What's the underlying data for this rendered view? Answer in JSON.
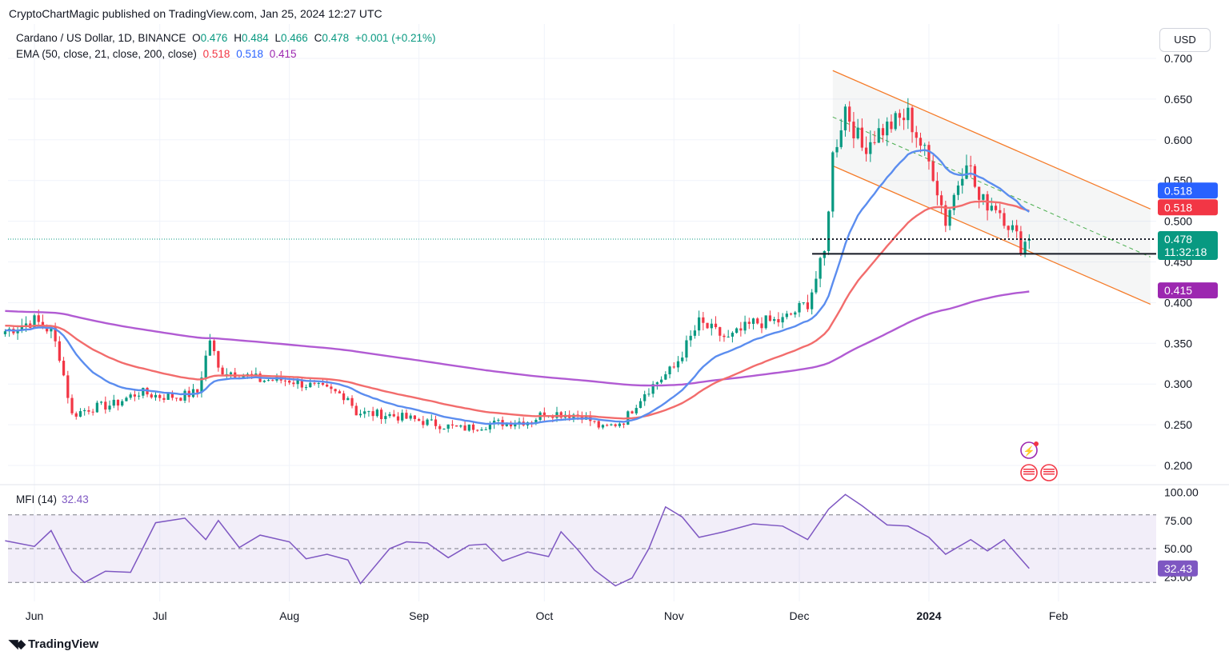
{
  "header": {
    "publisher": "CryptoChartMagic published on TradingView.com, Jan 25, 2024 12:27 UTC",
    "currency_button": "USD"
  },
  "legend": {
    "symbol": "Cardano / US Dollar, 1D, BINANCE",
    "o_label": "O",
    "o": "0.476",
    "h_label": "H",
    "h": "0.484",
    "l_label": "L",
    "l": "0.466",
    "c_label": "C",
    "c": "0.478",
    "change": "+0.001 (+0.21%)",
    "ema_label": "EMA (50, close, 21, close, 200, close)",
    "ema50": "0.518",
    "ema21": "0.518",
    "ema200": "0.415"
  },
  "mfi": {
    "label": "MFI (14)",
    "value": "32.43"
  },
  "footer": {
    "brand": "TradingView"
  },
  "colors": {
    "up": "#089981",
    "down": "#f23645",
    "ema21": "#5b8def",
    "ema50": "#f26c6c",
    "ema200": "#b15bd3",
    "mfi": "#7e57c2",
    "channel": "#f57c2a",
    "grid": "#f0f3fa"
  },
  "chart_data": [
    {
      "type": "candlestick",
      "title": "Cardano / US Dollar, 1D, BINANCE",
      "x_axis": {
        "ticks": [
          "Jun",
          "Jul",
          "Aug",
          "Sep",
          "Oct",
          "Nov",
          "Dec",
          "2024",
          "Feb"
        ]
      },
      "y_axis": {
        "ticks": [
          "0.700",
          "0.650",
          "0.600",
          "0.550",
          "0.500",
          "0.450",
          "0.400",
          "0.350",
          "0.300",
          "0.250",
          "0.200"
        ],
        "range": [
          0.18,
          0.72
        ]
      },
      "price_labels": [
        {
          "text": "0.518",
          "color": "#2962ff"
        },
        {
          "text": "0.518",
          "color": "#f23645"
        },
        {
          "text": "0.478",
          "color": "#089981"
        },
        {
          "text": "11:32:18",
          "color": "#089981"
        },
        {
          "text": "0.415",
          "color": "#9c27b0"
        }
      ],
      "close_path": [
        [
          "2023-05-25",
          0.365
        ],
        [
          "2023-06-01",
          0.378
        ],
        [
          "2023-06-05",
          0.365
        ],
        [
          "2023-06-07",
          0.335
        ],
        [
          "2023-06-10",
          0.262
        ],
        [
          "2023-06-14",
          0.27
        ],
        [
          "2023-06-20",
          0.275
        ],
        [
          "2023-06-26",
          0.29
        ],
        [
          "2023-07-01",
          0.285
        ],
        [
          "2023-07-06",
          0.285
        ],
        [
          "2023-07-10",
          0.29
        ],
        [
          "2023-07-13",
          0.355
        ],
        [
          "2023-07-15",
          0.318
        ],
        [
          "2023-07-20",
          0.313
        ],
        [
          "2023-07-25",
          0.305
        ],
        [
          "2023-08-01",
          0.305
        ],
        [
          "2023-08-08",
          0.295
        ],
        [
          "2023-08-15",
          0.285
        ],
        [
          "2023-08-17",
          0.265
        ],
        [
          "2023-08-25",
          0.262
        ],
        [
          "2023-09-01",
          0.255
        ],
        [
          "2023-09-06",
          0.25
        ],
        [
          "2023-09-11",
          0.245
        ],
        [
          "2023-09-20",
          0.252
        ],
        [
          "2023-09-28",
          0.255
        ],
        [
          "2023-10-01",
          0.265
        ],
        [
          "2023-10-10",
          0.262
        ],
        [
          "2023-10-15",
          0.245
        ],
        [
          "2023-10-20",
          0.255
        ],
        [
          "2023-10-25",
          0.29
        ],
        [
          "2023-11-01",
          0.32
        ],
        [
          "2023-11-07",
          0.375
        ],
        [
          "2023-11-14",
          0.355
        ],
        [
          "2023-11-20",
          0.375
        ],
        [
          "2023-11-27",
          0.378
        ],
        [
          "2023-12-03",
          0.4
        ],
        [
          "2023-12-07",
          0.46
        ],
        [
          "2023-12-09",
          0.58
        ],
        [
          "2023-12-12",
          0.64
        ],
        [
          "2023-12-16",
          0.59
        ],
        [
          "2023-12-20",
          0.61
        ],
        [
          "2023-12-27",
          0.63
        ],
        [
          "2024-01-02",
          0.56
        ],
        [
          "2024-01-05",
          0.5
        ],
        [
          "2024-01-10",
          0.58
        ],
        [
          "2024-01-13",
          0.525
        ],
        [
          "2024-01-17",
          0.52
        ],
        [
          "2024-01-21",
          0.49
        ],
        [
          "2024-01-23",
          0.47
        ],
        [
          "2024-01-25",
          0.478
        ]
      ],
      "last_bar": {
        "date": "2024-01-25",
        "open": 0.476,
        "high": 0.484,
        "low": 0.466,
        "close": 0.478
      },
      "series": [
        {
          "name": "EMA 21",
          "end_value": 0.518
        },
        {
          "name": "EMA 50",
          "end_value": 0.518
        },
        {
          "name": "EMA 200",
          "end_value": 0.415
        }
      ],
      "annotations": [
        {
          "type": "descending channel",
          "upper": [
            [
              "2023-12-09",
              0.685
            ],
            [
              "2024-02-23",
              0.515
            ]
          ],
          "lower": [
            [
              "2023-12-09",
              0.568
            ],
            [
              "2024-02-23",
              0.398
            ]
          ]
        },
        {
          "type": "dashed midline",
          "from": [
            "2023-12-09",
            0.628
          ],
          "to": [
            "2024-02-23",
            0.456
          ]
        },
        {
          "type": "horizontal support",
          "value": 0.46
        },
        {
          "type": "dotted level",
          "value": 0.478
        }
      ]
    },
    {
      "type": "line",
      "title": "MFI (14)",
      "y_axis": {
        "ticks": [
          "100.00",
          "75.00",
          "50.00",
          "25.00"
        ],
        "range": [
          15,
          102
        ],
        "band": [
          20,
          80
        ]
      },
      "current": 32.43,
      "values": [
        [
          "2023-05-25",
          57
        ],
        [
          "2023-06-01",
          52
        ],
        [
          "2023-06-05",
          66
        ],
        [
          "2023-06-10",
          30
        ],
        [
          "2023-06-13",
          20
        ],
        [
          "2023-06-18",
          30
        ],
        [
          "2023-06-24",
          29
        ],
        [
          "2023-06-30",
          73
        ],
        [
          "2023-07-07",
          77
        ],
        [
          "2023-07-12",
          58
        ],
        [
          "2023-07-15",
          75
        ],
        [
          "2023-07-20",
          51
        ],
        [
          "2023-07-25",
          62
        ],
        [
          "2023-08-01",
          56
        ],
        [
          "2023-08-05",
          41
        ],
        [
          "2023-08-10",
          45
        ],
        [
          "2023-08-15",
          40
        ],
        [
          "2023-08-18",
          19
        ],
        [
          "2023-08-25",
          50
        ],
        [
          "2023-08-29",
          56
        ],
        [
          "2023-09-03",
          55
        ],
        [
          "2023-09-08",
          42
        ],
        [
          "2023-09-13",
          53
        ],
        [
          "2023-09-17",
          54
        ],
        [
          "2023-09-21",
          39
        ],
        [
          "2023-09-27",
          47
        ],
        [
          "2023-10-02",
          43
        ],
        [
          "2023-10-05",
          65
        ],
        [
          "2023-10-09",
          49
        ],
        [
          "2023-10-13",
          31
        ],
        [
          "2023-10-18",
          17
        ],
        [
          "2023-10-22",
          24
        ],
        [
          "2023-10-26",
          50
        ],
        [
          "2023-10-30",
          87
        ],
        [
          "2023-11-03",
          78
        ],
        [
          "2023-11-07",
          60
        ],
        [
          "2023-11-13",
          65
        ],
        [
          "2023-11-20",
          72
        ],
        [
          "2023-11-27",
          70
        ],
        [
          "2023-12-03",
          58
        ],
        [
          "2023-12-08",
          85
        ],
        [
          "2023-12-12",
          98
        ],
        [
          "2023-12-16",
          88
        ],
        [
          "2023-12-22",
          71
        ],
        [
          "2023-12-27",
          70
        ],
        [
          "2024-01-01",
          60
        ],
        [
          "2024-01-05",
          45
        ],
        [
          "2024-01-11",
          58
        ],
        [
          "2024-01-15",
          48
        ],
        [
          "2024-01-19",
          58
        ],
        [
          "2024-01-22",
          45
        ],
        [
          "2024-01-25",
          32.43
        ]
      ]
    }
  ]
}
